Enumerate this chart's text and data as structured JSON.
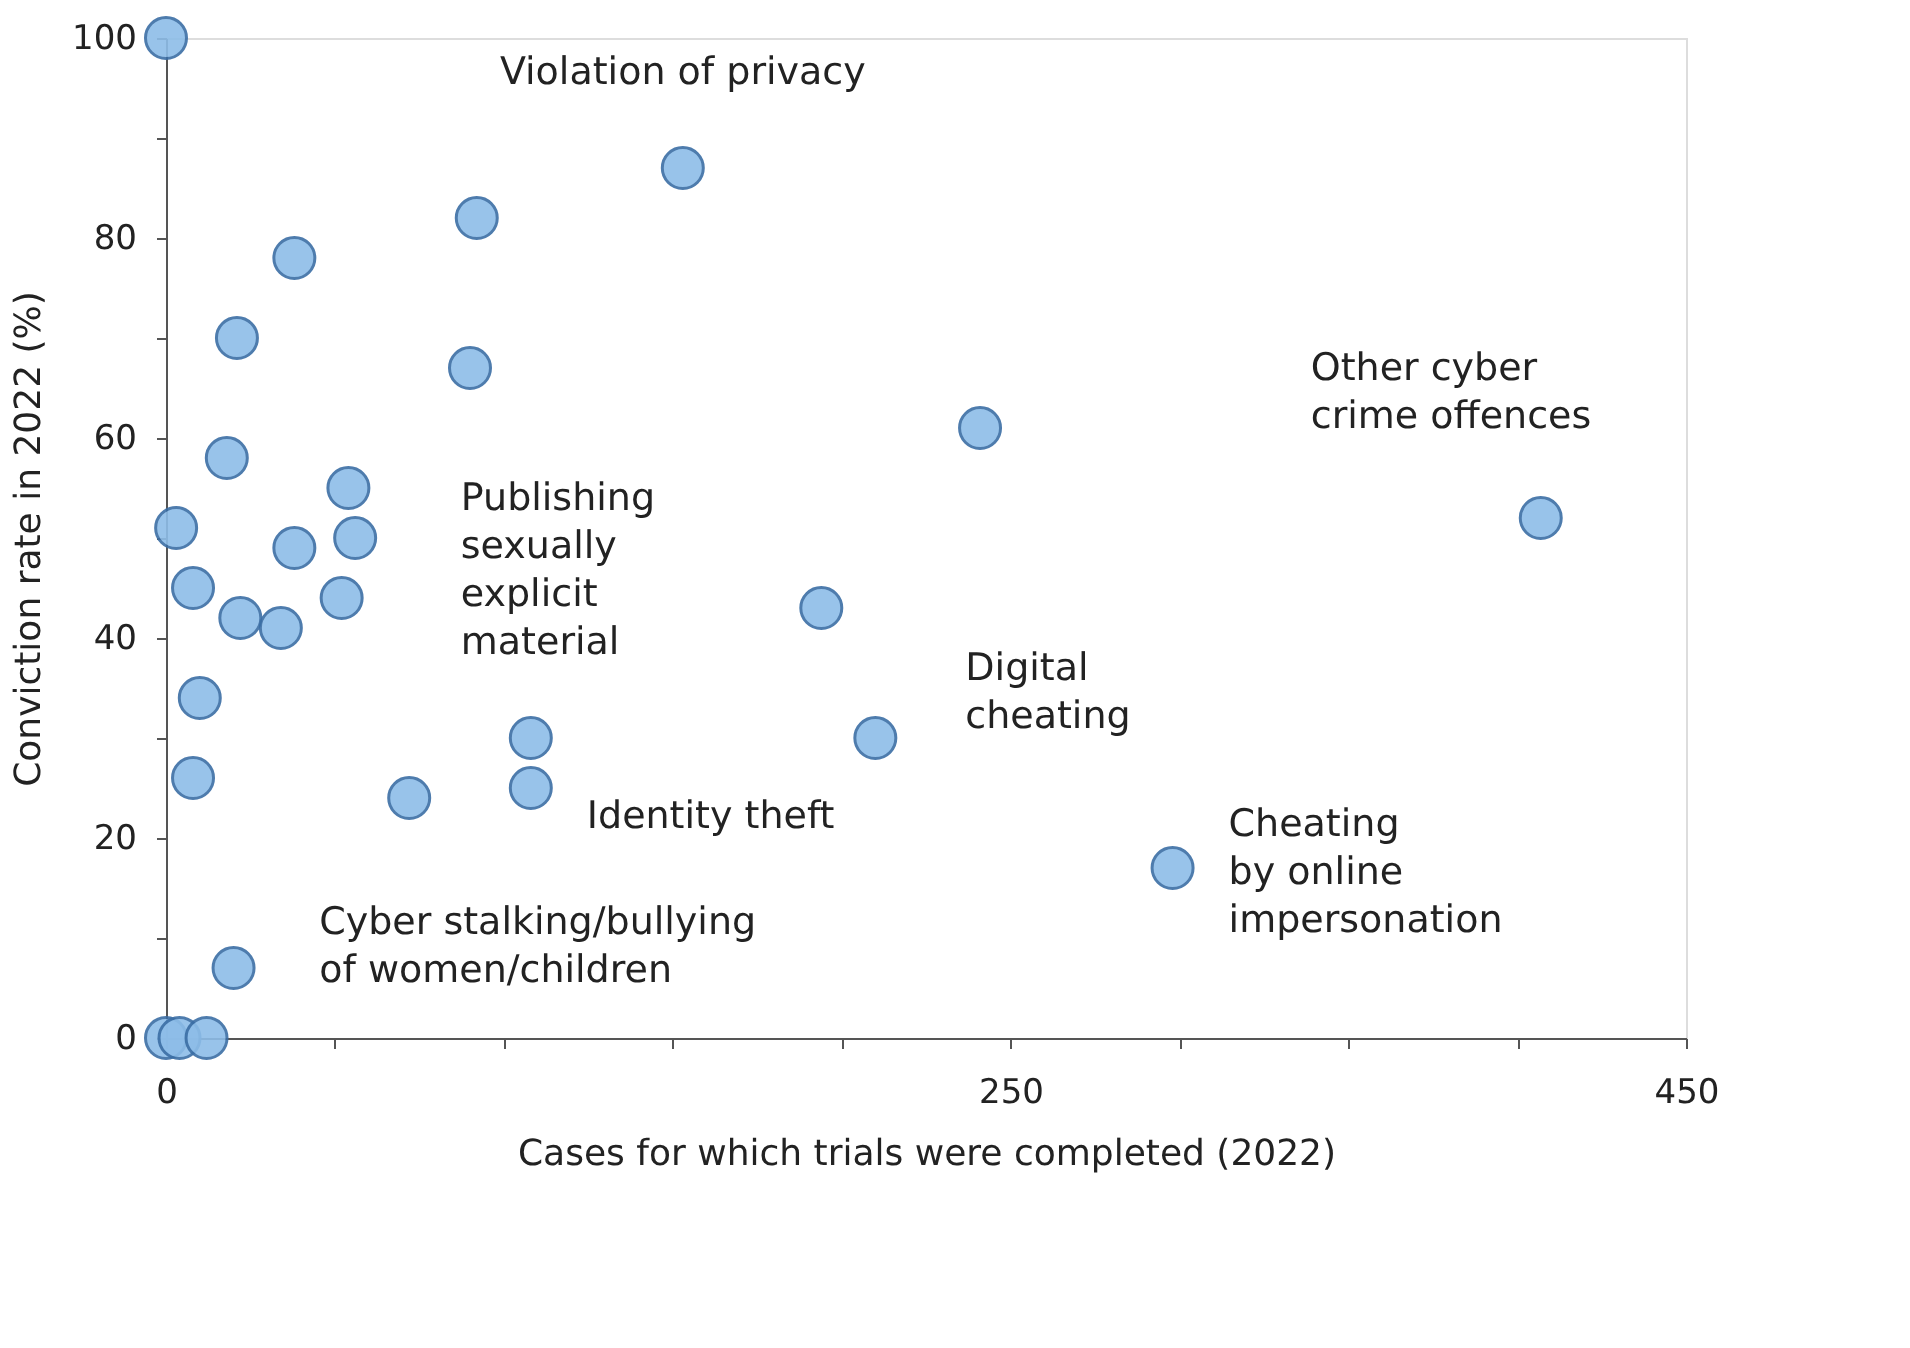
{
  "chart_data": {
    "type": "scatter",
    "xlabel": "Cases for which trials were completed (2022)",
    "ylabel": "Conviction rate in 2022 (%)",
    "series": [
      {
        "color": "#8dbde8",
        "x": [
          0,
          153,
          92,
          38,
          21,
          90,
          18,
          54,
          3,
          38,
          56,
          8,
          22,
          34,
          52,
          10,
          8,
          108,
          108,
          72,
          20,
          0,
          4,
          12,
          210,
          298,
          194,
          241,
          407
        ],
        "values": [
          100,
          87,
          82,
          78,
          70,
          67,
          58,
          55,
          51,
          49,
          50,
          45,
          42,
          41,
          44,
          34,
          26,
          30,
          25,
          24,
          7,
          0,
          0,
          0,
          30,
          17,
          43,
          61,
          52
        ]
      }
    ],
    "xlim": [
      0,
      450
    ],
    "ylim": [
      0,
      100
    ],
    "xticks": [
      0,
      {
        "value": 50,
        "label": null
      },
      {
        "value": 100,
        "label": null
      },
      {
        "value": 150,
        "label": null
      },
      {
        "value": 200,
        "label": null
      },
      250,
      {
        "value": 300,
        "label": null
      },
      {
        "value": 350,
        "label": null
      },
      {
        "value": 400,
        "label": null
      },
      450
    ],
    "yticks": [
      0,
      {
        "value": 10,
        "label": null
      },
      20,
      {
        "value": 30,
        "label": null
      },
      40,
      {
        "value": 50,
        "label": null
      },
      60,
      {
        "value": 70,
        "label": null
      },
      80,
      {
        "value": 90,
        "label": null
      },
      100
    ],
    "marker": "circle",
    "grid": false,
    "annotations": [
      {
        "text": "Violation of privacy",
        "x": 153,
        "y": 87
      },
      {
        "text": "Other cyber\ncrime offences",
        "x": 407,
        "y": 52
      },
      {
        "text": "Publishing\nsexually\nexplicit\nmaterial",
        "x": 108,
        "y": 30
      },
      {
        "text": "Digital\ncheating",
        "x": 210,
        "y": 30
      },
      {
        "text": "Identity theft",
        "x": 108,
        "y": 25
      },
      {
        "text": "Cyber stalking/bullying\nof women/children",
        "x": 72,
        "y": 24
      },
      {
        "text": "Cheating\nby online\nimpersonation",
        "x": 298,
        "y": 17
      }
    ]
  }
}
